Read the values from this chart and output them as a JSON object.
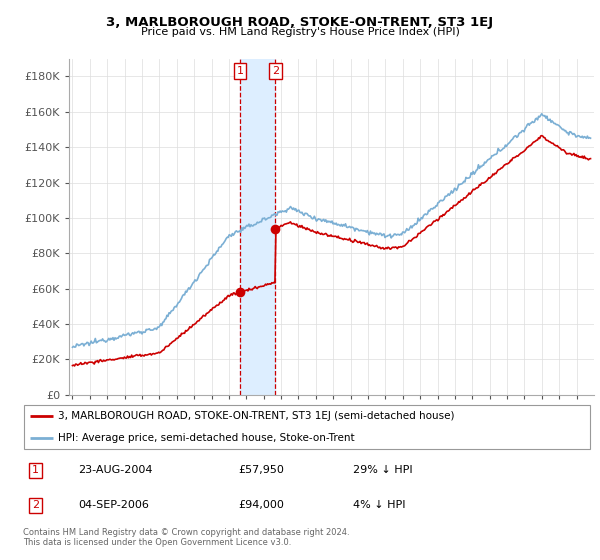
{
  "title": "3, MARLBOROUGH ROAD, STOKE-ON-TRENT, ST3 1EJ",
  "subtitle": "Price paid vs. HM Land Registry's House Price Index (HPI)",
  "legend_line1": "3, MARLBOROUGH ROAD, STOKE-ON-TRENT, ST3 1EJ (semi-detached house)",
  "legend_line2": "HPI: Average price, semi-detached house, Stoke-on-Trent",
  "transaction1_date": "23-AUG-2004",
  "transaction1_price": "£57,950",
  "transaction1_hpi": "29% ↓ HPI",
  "transaction2_date": "04-SEP-2006",
  "transaction2_price": "£94,000",
  "transaction2_hpi": "4% ↓ HPI",
  "footnote": "Contains HM Land Registry data © Crown copyright and database right 2024.\nThis data is licensed under the Open Government Licence v3.0.",
  "red_color": "#cc0000",
  "blue_color": "#7bafd4",
  "shading_color": "#ddeeff",
  "ylim": [
    0,
    190000
  ],
  "yticks": [
    0,
    20000,
    40000,
    60000,
    80000,
    100000,
    120000,
    140000,
    160000,
    180000
  ],
  "ytick_labels": [
    "£0",
    "£20K",
    "£40K",
    "£60K",
    "£80K",
    "£100K",
    "£120K",
    "£140K",
    "£160K",
    "£180K"
  ],
  "xlim_start": 1994.8,
  "xlim_end": 2025.0,
  "transaction1_x": 2004.637,
  "transaction1_y": 57950,
  "transaction2_x": 2006.671,
  "transaction2_y": 94000
}
